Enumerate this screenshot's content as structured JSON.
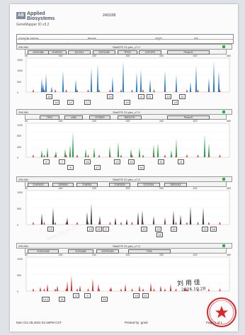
{
  "header": {
    "logo_mark": "AB",
    "brand_line1": "Applied",
    "brand_line2": "Biosystems",
    "software": "GeneMapper ID v3.2",
    "doc_number": "241028"
  },
  "info": {
    "col1": "Sample Name",
    "col2": "Panel",
    "col3": "SQO",
    "col4": "SS"
  },
  "panels": [
    {
      "sample": "ZHL981",
      "kit": "SifaSTR 23 plex_v7.0",
      "status_color": "#25b53a",
      "markers": [
        "D3S1358",
        "D13S317",
        "D21S11",
        "D2S1338",
        "TPOX",
        "CSF1PO",
        "Penta D"
      ],
      "bp_ticks": [
        "80",
        "180",
        "240",
        "300",
        "340",
        "400",
        "460"
      ],
      "y_ticks": [
        "1500",
        "1000",
        "500",
        "0"
      ],
      "peak_color": "#2a7fc9",
      "alleles": [
        "15",
        "16",
        "11",
        "17",
        "15",
        "19",
        "8",
        "11",
        "13",
        "13",
        "11"
      ]
    },
    {
      "sample": "ZHL981",
      "kit": "SifaSTR 23 plex_v7.0",
      "status_color": "#25b53a",
      "markers": [
        "TH01",
        "vWA",
        "D7S820",
        "D8S1179",
        "Penta E"
      ],
      "bp_ticks": [
        "80",
        "180",
        "240",
        "300",
        "340",
        "400",
        "460"
      ],
      "y_ticks": [
        "1200",
        "800",
        "400",
        "0"
      ],
      "peak_color": "#2e9e47",
      "alleles": [
        "X",
        "7",
        "8",
        "16",
        "17",
        "12",
        "10",
        "30",
        "31",
        "11"
      ]
    },
    {
      "sample": "ZHL981",
      "kit": "SifaSTR 23 plex_v7.0",
      "status_color": "#25b53a",
      "markers": [
        "D19S433",
        "D5S818",
        "D18S51",
        "D16S539",
        "D12S391",
        "D6S1043"
      ],
      "bp_ticks": [
        "80",
        "180",
        "240",
        "300",
        "340",
        "400",
        "460"
      ],
      "y_ticks": [
        "1000",
        "500",
        "0"
      ],
      "peak_color": "#3a3a3a",
      "alleles": [
        "13",
        "13",
        "15",
        "17",
        "20",
        "22",
        "18",
        "19",
        "13",
        "18"
      ]
    },
    {
      "sample": "ZHL981",
      "kit": "SifaSTR 23 plex_v7.0",
      "status_color": "#25b53a",
      "markers": [
        "D10S1248",
        "D1S1656",
        "D22S1045",
        "FGA"
      ],
      "bp_ticks": [
        "80",
        "180",
        "240",
        "300",
        "340",
        "400",
        "460"
      ],
      "y_ticks": [
        "1000",
        "500",
        "0"
      ],
      "peak_color": "#d0332b",
      "alleles": [
        "14.2",
        "15",
        "12",
        "9",
        "16",
        "19",
        "21"
      ]
    }
  ],
  "signature": {
    "name": "刘 用 佳",
    "date": "2024.10.28"
  },
  "stamp": {
    "text": "司法鉴定专用章"
  },
  "footer": {
    "date": "Mon Oct 28,2024 04:16PM CST",
    "printed_by": "Printed by: gmid",
    "page": "Page 1 of 1"
  },
  "watermark": "www.sifa.hk.cn"
}
